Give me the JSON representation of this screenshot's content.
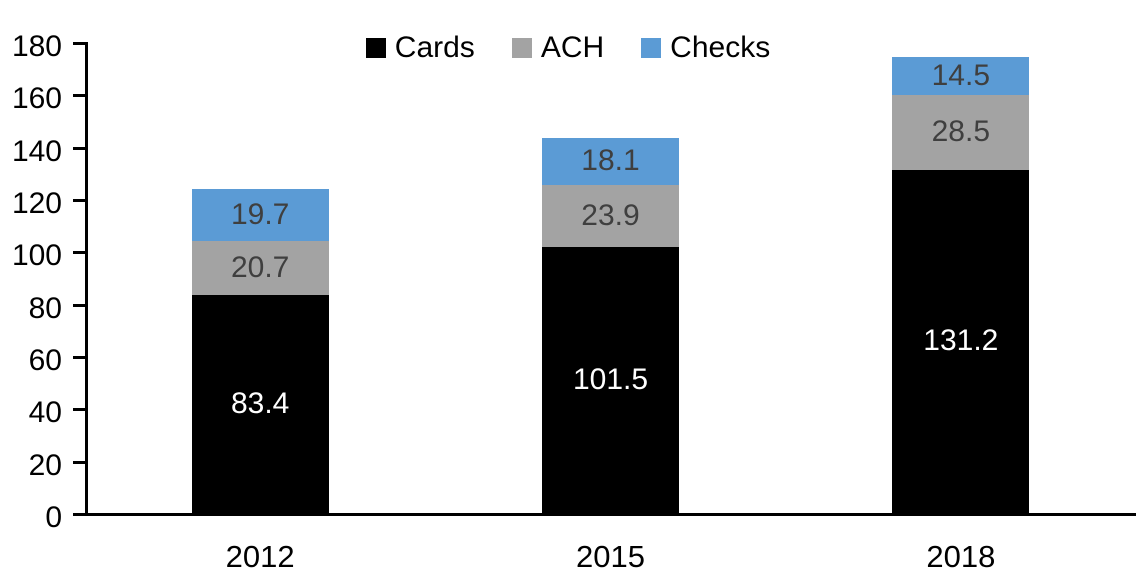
{
  "chart_data": {
    "type": "bar",
    "stacked": true,
    "title": "",
    "xlabel": "",
    "ylabel": "",
    "categories": [
      "2012",
      "2015",
      "2018"
    ],
    "series": [
      {
        "name": "Cards",
        "color": "#000000",
        "label_color": "#ffffff",
        "values": [
          83.4,
          101.5,
          131.2
        ]
      },
      {
        "name": "ACH",
        "color": "#a3a3a3",
        "label_color": "#3f3f3f",
        "values": [
          20.7,
          23.9,
          28.5
        ]
      },
      {
        "name": "Checks",
        "color": "#5b9bd5",
        "label_color": "#3f3f3f",
        "values": [
          19.7,
          18.1,
          14.5
        ]
      }
    ],
    "ylim": [
      0,
      180
    ],
    "yticks": [
      0,
      20,
      40,
      60,
      80,
      100,
      120,
      140,
      160,
      180
    ],
    "legend_position": "top",
    "grid": false,
    "axis_color": "#000000"
  }
}
